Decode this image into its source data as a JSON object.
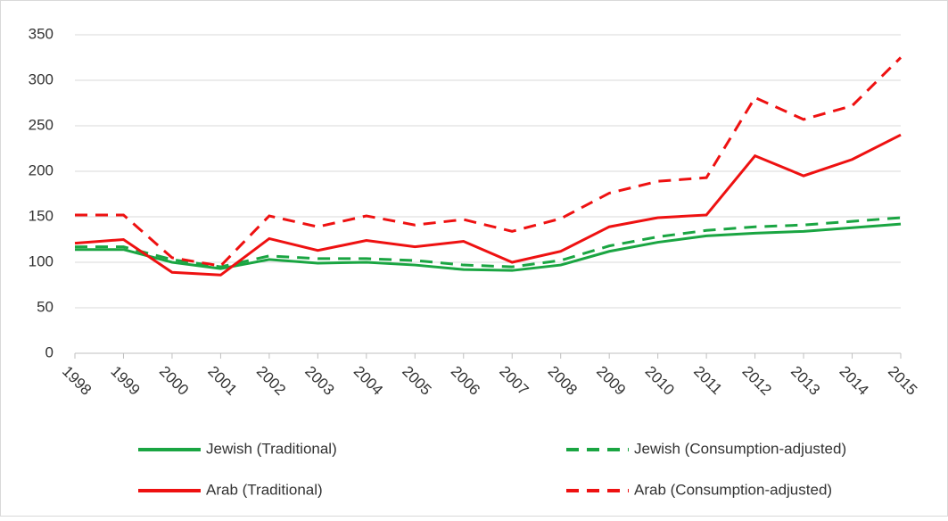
{
  "chart_data": {
    "type": "line",
    "categories": [
      "1998",
      "1999",
      "2000",
      "2001",
      "2002",
      "2003",
      "2004",
      "2005",
      "2006",
      "2007",
      "2008",
      "2009",
      "2010",
      "2011",
      "2012",
      "2013",
      "2014",
      "2015"
    ],
    "series": [
      {
        "name": "Jewish (Traditional)",
        "color": "#1aa542",
        "dashed": false,
        "values": [
          114,
          114,
          100,
          93,
          103,
          99,
          100,
          97,
          92,
          91,
          97,
          112,
          122,
          129,
          132,
          134,
          138,
          142
        ]
      },
      {
        "name": "Jewish (Consumption-adjusted)",
        "color": "#1aa542",
        "dashed": true,
        "values": [
          117,
          117,
          103,
          95,
          107,
          104,
          104,
          102,
          97,
          95,
          102,
          118,
          128,
          135,
          139,
          141,
          145,
          149
        ]
      },
      {
        "name": "Arab (Traditional)",
        "color": "#ee1111",
        "dashed": false,
        "values": [
          121,
          125,
          89,
          86,
          126,
          113,
          124,
          117,
          123,
          100,
          112,
          139,
          149,
          152,
          217,
          195,
          213,
          240
        ]
      },
      {
        "name": "Arab (Consumption-adjusted)",
        "color": "#ee1111",
        "dashed": true,
        "values": [
          152,
          152,
          105,
          96,
          151,
          139,
          151,
          141,
          147,
          134,
          148,
          176,
          189,
          193,
          281,
          257,
          272,
          325
        ]
      }
    ],
    "ylim": [
      0,
      350
    ],
    "yticks": [
      0,
      50,
      100,
      150,
      200,
      250,
      300,
      350
    ],
    "grid": true
  }
}
